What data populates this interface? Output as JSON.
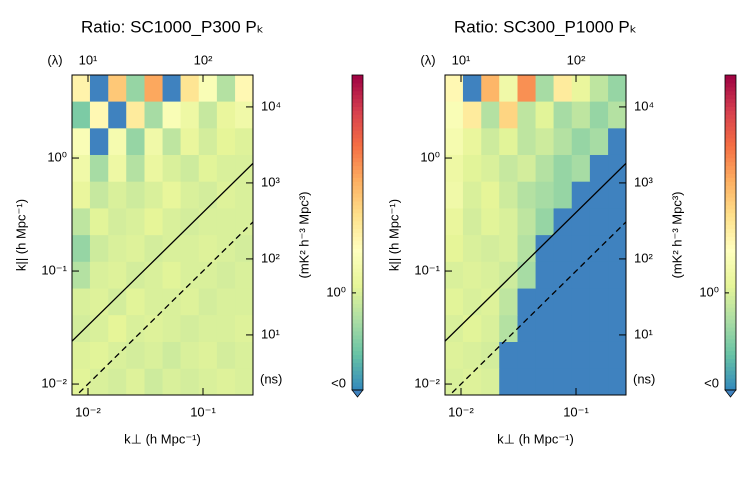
{
  "chart_data": [
    {
      "type": "heatmap",
      "title": "Ratio: SC1000_P300 Pₖ",
      "xlabel": "k⊥ (h Mpc⁻¹)",
      "ylabel": "k|| (h Mpc⁻¹)",
      "log_scale": true,
      "xlim": [
        0.00726,
        0.272
      ],
      "ylim": [
        0.008,
        5.43
      ],
      "xticks": [
        {
          "value": 0.01,
          "label": "10⁻²"
        },
        {
          "value": 0.1,
          "label": "10⁻¹"
        }
      ],
      "yticks": [
        {
          "value": 0.01,
          "label": "10⁻²"
        },
        {
          "value": 0.1,
          "label": "10⁻¹"
        },
        {
          "value": 1,
          "label": "10⁰"
        }
      ],
      "x2label": "(λ)",
      "x2lim": [
        7.26,
        272
      ],
      "x2ticks": [
        {
          "value": 10,
          "label": "10¹"
        },
        {
          "value": 100,
          "label": "10²"
        }
      ],
      "y2label": "(ns)",
      "y2lim": [
        1.62,
        26300
      ],
      "y2ticks": [
        {
          "value": 10,
          "label": "10¹"
        },
        {
          "value": 100,
          "label": "10²"
        },
        {
          "value": 1000,
          "label": "10³"
        },
        {
          "value": 10000,
          "label": "10⁴"
        }
      ],
      "x_edges": [
        0.00726,
        0.0104,
        0.015,
        0.0215,
        0.031,
        0.0445,
        0.0638,
        0.0918,
        0.132,
        0.19,
        0.272
      ],
      "y_edges": [
        0.008,
        0.0138,
        0.0238,
        0.0411,
        0.0707,
        0.122,
        0.21,
        0.362,
        0.624,
        1.075,
        1.85,
        3.19,
        5.43
      ],
      "z": [
        [
          1.2,
          1.0,
          0.9,
          1.1,
          0.8,
          1.0,
          0.9,
          1.0,
          1.1,
          1.0
        ],
        [
          1.1,
          1.2,
          1.0,
          0.9,
          1.0,
          0.8,
          1.0,
          1.1,
          0.9,
          1.0
        ],
        [
          0.9,
          1.0,
          1.3,
          1.0,
          1.1,
          1.0,
          0.9,
          1.0,
          1.0,
          1.1
        ],
        [
          1.0,
          1.1,
          0.9,
          1.2,
          1.0,
          1.0,
          1.1,
          0.9,
          1.0,
          1.0
        ],
        [
          0.5,
          1.0,
          1.1,
          0.9,
          1.0,
          1.2,
          1.0,
          1.0,
          0.9,
          1.0
        ],
        [
          0.3,
          0.8,
          1.0,
          1.1,
          0.9,
          1.0,
          1.0,
          1.1,
          1.0,
          0.9
        ],
        [
          0.6,
          1.2,
          0.9,
          1.0,
          1.3,
          1.0,
          0.9,
          1.0,
          1.0,
          1.0
        ],
        [
          1.5,
          0.7,
          1.0,
          0.8,
          1.0,
          1.4,
          1.0,
          0.9,
          1.1,
          1.0
        ],
        [
          2.0,
          0.4,
          1.8,
          0.5,
          1.6,
          1.0,
          0.8,
          1.2,
          1.0,
          1.0
        ],
        [
          3.0,
          -1,
          2.5,
          0.3,
          2.0,
          0.6,
          1.5,
          0.9,
          1.3,
          1.1
        ],
        [
          0.2,
          5.0,
          -1,
          8.0,
          0.4,
          3.0,
          1.8,
          0.7,
          1.5,
          2.0
        ],
        [
          6.0,
          -1,
          20,
          0.3,
          40,
          -1,
          10,
          3,
          0.5,
          5
        ]
      ],
      "horizon_lines": [
        {
          "slope": 3.3,
          "style": "solid"
        },
        {
          "slope": 1,
          "style": "dashed"
        }
      ],
      "colorbar_label": "(mK² h⁻³ Mpc³)",
      "clim": [
        0.046,
        1000
      ],
      "cticks": [
        {
          "value": 1,
          "label": "10⁰"
        }
      ],
      "under_label": "<0",
      "under_color": "#3f82bf",
      "colormap": [
        "#3288bd",
        "#66c2a5",
        "#abdda4",
        "#e6f598",
        "#ffffbf",
        "#fee08b",
        "#fdae61",
        "#f46d43",
        "#d53e4f",
        "#9e0142"
      ]
    },
    {
      "type": "heatmap",
      "title": "Ratio: SC300_P1000 Pₖ",
      "xlabel": "k⊥ (h Mpc⁻¹)",
      "ylabel": "k|| (h Mpc⁻¹)",
      "log_scale": true,
      "xlim": [
        0.00726,
        0.272
      ],
      "ylim": [
        0.008,
        5.43
      ],
      "xticks": [
        {
          "value": 0.01,
          "label": "10⁻²"
        },
        {
          "value": 0.1,
          "label": "10⁻¹"
        }
      ],
      "yticks": [
        {
          "value": 0.01,
          "label": "10⁻²"
        },
        {
          "value": 0.1,
          "label": "10⁻¹"
        },
        {
          "value": 1,
          "label": "10⁰"
        }
      ],
      "x2label": "(λ)",
      "x2lim": [
        7.26,
        272
      ],
      "x2ticks": [
        {
          "value": 10,
          "label": "10¹"
        },
        {
          "value": 100,
          "label": "10²"
        }
      ],
      "y2label": "(ns)",
      "y2lim": [
        1.62,
        26300
      ],
      "y2ticks": [
        {
          "value": 10,
          "label": "10¹"
        },
        {
          "value": 100,
          "label": "10²"
        },
        {
          "value": 1000,
          "label": "10³"
        },
        {
          "value": 10000,
          "label": "10⁴"
        }
      ],
      "x_edges": [
        0.00726,
        0.0104,
        0.015,
        0.0215,
        0.031,
        0.0445,
        0.0638,
        0.0918,
        0.132,
        0.19,
        0.272
      ],
      "y_edges": [
        0.008,
        0.0138,
        0.0238,
        0.0411,
        0.0707,
        0.122,
        0.21,
        0.362,
        0.624,
        1.075,
        1.85,
        3.19,
        5.43
      ],
      "z": [
        [
          1.0,
          1.1,
          1.0,
          -1,
          -1,
          -1,
          -1,
          -1,
          -1,
          -1
        ],
        [
          1.1,
          1.0,
          0.9,
          -1,
          -1,
          -1,
          -1,
          -1,
          -1,
          -1
        ],
        [
          1.0,
          1.2,
          1.0,
          0.5,
          -1,
          -1,
          -1,
          -1,
          -1,
          -1
        ],
        [
          1.2,
          1.0,
          1.1,
          0.6,
          -1,
          -1,
          -1,
          -1,
          -1,
          -1
        ],
        [
          1.0,
          1.1,
          1.0,
          0.8,
          0.4,
          -1,
          -1,
          -1,
          -1,
          -1
        ],
        [
          1.3,
          1.0,
          0.9,
          1.0,
          0.5,
          -1,
          -1,
          -1,
          -1,
          -1
        ],
        [
          1.5,
          0.9,
          1.2,
          1.0,
          0.6,
          0.3,
          -1,
          -1,
          -1,
          -1
        ],
        [
          2.0,
          1.0,
          1.3,
          0.8,
          0.5,
          0.4,
          0.3,
          -1,
          -1,
          -1
        ],
        [
          1.8,
          1.2,
          1.0,
          0.7,
          0.9,
          0.5,
          0.3,
          0.4,
          -1,
          -1
        ],
        [
          2.5,
          1.5,
          0.8,
          1.2,
          0.6,
          0.8,
          0.5,
          0.3,
          0.4,
          -1
        ],
        [
          3.0,
          8.0,
          0.5,
          15,
          0.6,
          1.2,
          0.4,
          0.6,
          0.3,
          0.5
        ],
        [
          5.0,
          -1,
          30,
          2,
          60,
          0.4,
          8,
          1.5,
          0.6,
          0.3
        ]
      ],
      "horizon_lines": [
        {
          "slope": 3.3,
          "style": "solid"
        },
        {
          "slope": 1,
          "style": "dashed"
        }
      ],
      "colorbar_label": "(mK² h⁻³ Mpc³)",
      "clim": [
        0.046,
        1000
      ],
      "cticks": [
        {
          "value": 1,
          "label": "10⁰"
        }
      ],
      "under_label": "<0",
      "under_color": "#3f82bf",
      "colormap": [
        "#3288bd",
        "#66c2a5",
        "#abdda4",
        "#e6f598",
        "#ffffbf",
        "#fee08b",
        "#fdae61",
        "#f46d43",
        "#d53e4f",
        "#9e0142"
      ]
    }
  ]
}
